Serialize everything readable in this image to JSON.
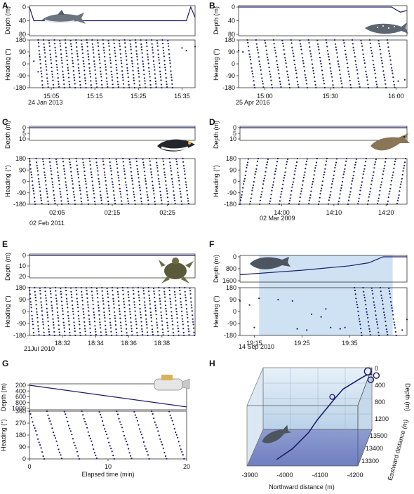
{
  "figure": {
    "line_color": "#1c1c6b",
    "bg_shade": "#cfe2f3",
    "panels": [
      "A",
      "B",
      "C",
      "D",
      "E",
      "F",
      "G",
      "H"
    ]
  },
  "chart_data": [
    {
      "panel": "A",
      "type": "scatter",
      "date": "24 Jan 2013",
      "icon": "shark-icon",
      "depth": {
        "ylabel": "Depth (m)",
        "ticks": [
          "0",
          "40",
          "80"
        ],
        "ylim": [
          0,
          80
        ],
        "x": [
          "15:00",
          "15:01",
          "15:02",
          "15:34",
          "15:36",
          "15:37",
          "15:38"
        ],
        "values": [
          0,
          40,
          40,
          40,
          40,
          0,
          30
        ]
      },
      "heading": {
        "ylabel": "Heading (°)",
        "ticks": [
          "180",
          "90",
          "0",
          "-90",
          "-180"
        ],
        "ylim": [
          -180,
          180
        ]
      },
      "xticks": [
        "15:05",
        "15:15",
        "15:25",
        "15:35"
      ],
      "xrange": [
        "15:00",
        "15:38"
      ],
      "heading_sweeps": {
        "start": "15:02",
        "end": "15:33",
        "count": 25,
        "direction": "down"
      },
      "heading_pre": [
        {
          "t": "15:00",
          "v": 60
        },
        {
          "t": "15:01",
          "v": 20
        },
        {
          "t": "15:02",
          "v": -60
        }
      ],
      "heading_post": [
        {
          "t": "15:35",
          "v": 120
        },
        {
          "t": "15:36",
          "v": 100
        },
        {
          "t": "15:38",
          "v": 130
        }
      ]
    },
    {
      "panel": "B",
      "type": "scatter",
      "date": "25 Apr 2016",
      "icon": "whale-shark-icon",
      "depth": {
        "ylabel": "Depth (m)",
        "ticks": [
          "0",
          "40",
          "80"
        ],
        "ylim": [
          0,
          80
        ],
        "x": [
          "14:48",
          "15:58",
          "16:00",
          "16:02",
          "16:05"
        ],
        "values": [
          0,
          0,
          8,
          15,
          10
        ]
      },
      "heading": {
        "ylabel": "Heading (°)",
        "ticks": [
          "180",
          "90",
          "0",
          "-90",
          "-180"
        ],
        "ylim": [
          -180,
          180
        ]
      },
      "xticks": [
        "15:00",
        "15:30",
        "16:00"
      ],
      "xrange": [
        "14:48",
        "16:05"
      ],
      "heading_sweeps": {
        "start": "14:52",
        "end": "16:00",
        "count": 17,
        "direction": "down"
      },
      "heading_pre": [
        {
          "t": "14:48",
          "v": 100
        },
        {
          "t": "14:50",
          "v": 90
        }
      ],
      "heading_post": [
        {
          "t": "16:01",
          "v": -130
        },
        {
          "t": "16:04",
          "v": -120
        }
      ]
    },
    {
      "panel": "C",
      "type": "scatter",
      "date": "02 Feb 2011",
      "icon": "penguin-icon",
      "depth": {
        "ylabel": "Depth (m)",
        "ticks": [
          "0",
          "5",
          "10"
        ],
        "ylim": [
          0,
          10
        ],
        "x": [
          "02:00",
          "02:30"
        ],
        "values": [
          0,
          0
        ]
      },
      "heading": {
        "ylabel": "Heading (°)",
        "ticks": [
          "180",
          "90",
          "0",
          "-90",
          "-180"
        ],
        "ylim": [
          -180,
          180
        ]
      },
      "xticks": [
        "02:05",
        "02:15",
        "02:25"
      ],
      "xrange": [
        "02:00",
        "02:30"
      ],
      "heading_sweeps": {
        "start": "02:00",
        "end": "02:29",
        "count": 24,
        "direction": "down"
      },
      "heading_pre": [],
      "heading_post": []
    },
    {
      "panel": "D",
      "type": "scatter",
      "date": "02 Mar 2009",
      "icon": "sea-lion-icon",
      "depth": {
        "ylabel": "Depth (m)",
        "ticks": [
          "0",
          "5",
          "10"
        ],
        "ylim": [
          0,
          10
        ],
        "x": [
          "13:52",
          "14:24"
        ],
        "values": [
          0,
          0
        ]
      },
      "heading": {
        "ylabel": "Heading (°)",
        "ticks": [
          "180",
          "90",
          "0",
          "-90",
          "-180"
        ],
        "ylim": [
          -180,
          180
        ]
      },
      "xticks": [
        "14:00",
        "14:10",
        "14:20"
      ],
      "xrange": [
        "13:52",
        "14:24"
      ],
      "heading_sweeps": {
        "start": "13:52",
        "end": "14:24",
        "count": 17,
        "direction": "up"
      },
      "heading_pre": [],
      "heading_post": []
    },
    {
      "panel": "E",
      "type": "scatter",
      "date": "21Jul 2010",
      "icon": "turtle-icon",
      "depth": {
        "ylabel": "Depth (m)",
        "ticks": [
          "0",
          "10",
          "20"
        ],
        "ylim": [
          0,
          20
        ],
        "x": [
          "18:30",
          "18:40"
        ],
        "values": [
          0,
          0
        ]
      },
      "heading": {
        "ylabel": "Heading (°)",
        "ticks": [
          "180",
          "90",
          "0",
          "-90",
          "-180"
        ],
        "ylim": [
          -180,
          180
        ]
      },
      "xticks": [
        "18:32",
        "18:34",
        "18:36",
        "18:38"
      ],
      "xrange": [
        "18:30",
        "18:40"
      ],
      "heading_sweeps": {
        "start": "18:30",
        "end": "18:40",
        "count": 32,
        "direction": "down"
      },
      "heading_pre": [],
      "heading_post": []
    },
    {
      "panel": "F",
      "type": "scatter",
      "date": "14 Sep 2010",
      "icon": "whale-icon",
      "depth": {
        "ylabel": "Depth (m)",
        "ticks": [
          "0",
          "800",
          "1600"
        ],
        "ylim": [
          0,
          1600
        ],
        "x": [
          "19:12",
          "19:25",
          "19:35",
          "19:39",
          "19:42",
          "19:47"
        ],
        "values": [
          1200,
          900,
          600,
          400,
          0,
          0
        ]
      },
      "heading": {
        "ylabel": "Heading (°)",
        "ticks": [
          "180",
          "90",
          "0",
          "-90",
          "-180"
        ],
        "ylim": [
          -180,
          180
        ]
      },
      "xticks": [
        "19:15",
        "19:25",
        "19:35"
      ],
      "xrange": [
        "19:12",
        "19:47"
      ],
      "shade": [
        "19:16",
        "19:44"
      ],
      "heading_sweeps": {
        "start": "19:36",
        "end": "19:45",
        "count": 5,
        "direction": "down"
      },
      "heading_pre": [
        {
          "t": "19:12",
          "v": 80
        },
        {
          "t": "19:14",
          "v": 50
        },
        {
          "t": "19:15",
          "v": -120
        },
        {
          "t": "19:16",
          "v": 100
        },
        {
          "t": "19:20",
          "v": 90
        },
        {
          "t": "19:23",
          "v": 80
        },
        {
          "t": "19:24",
          "v": -130
        },
        {
          "t": "19:26",
          "v": -140
        },
        {
          "t": "19:27",
          "v": -20
        },
        {
          "t": "19:29",
          "v": -40
        },
        {
          "t": "19:30",
          "v": 20
        },
        {
          "t": "19:31",
          "v": -120
        },
        {
          "t": "19:33",
          "v": -130
        },
        {
          "t": "19:34",
          "v": -120
        }
      ],
      "heading_post": [
        {
          "t": "19:46",
          "v": -140
        },
        {
          "t": "19:47",
          "v": -60
        }
      ]
    },
    {
      "panel": "G",
      "type": "scatter",
      "xlabel": "Elapsed time (min)",
      "icon": "robot-glider-icon",
      "depth": {
        "ylabel": "Depth (m)",
        "ticks": [
          "200",
          "400",
          "600",
          "800",
          "1000"
        ],
        "ylim": [
          200,
          1000
        ],
        "x": [
          0,
          20
        ],
        "values": [
          200,
          950
        ]
      },
      "heading": {
        "ylabel": "Heading (°)",
        "ticks": [
          "360",
          "270",
          "180",
          "90",
          "0"
        ],
        "ylim": [
          0,
          360
        ]
      },
      "xticks": [
        "0",
        "10",
        "20"
      ],
      "xrange": [
        0,
        20
      ],
      "heading_sweeps": {
        "start": 0,
        "end": 20,
        "count": 9,
        "direction": "down"
      },
      "heading_pre": [],
      "heading_post": []
    },
    {
      "panel": "H",
      "type": "line",
      "icon": "whale-icon",
      "xlabel": "Northward distance (m)",
      "ylabel": "Eastward distance (m)",
      "zlabel": "Depth (m)",
      "xticks": [
        "-3900",
        "-4000",
        "-4100",
        "-4200"
      ],
      "yticks": [
        "13300",
        "13400",
        "13500"
      ],
      "zticks": [
        "0",
        "400",
        "800",
        "1200"
      ],
      "track": [
        {
          "n": -3980,
          "e": 13310,
          "d": 1350
        },
        {
          "n": -4020,
          "e": 13340,
          "d": 1200
        },
        {
          "n": -4060,
          "e": 13380,
          "d": 950
        },
        {
          "n": -4080,
          "e": 13410,
          "d": 750
        },
        {
          "n": -4100,
          "e": 13440,
          "d": 600
        },
        {
          "n": -4120,
          "e": 13470,
          "d": 450
        },
        {
          "n": -4140,
          "e": 13490,
          "d": 300
        },
        {
          "n": -4180,
          "e": 13510,
          "d": 150
        },
        {
          "n": -4200,
          "e": 13520,
          "d": 80
        },
        {
          "n": -4220,
          "e": 13510,
          "d": 20
        }
      ]
    }
  ]
}
